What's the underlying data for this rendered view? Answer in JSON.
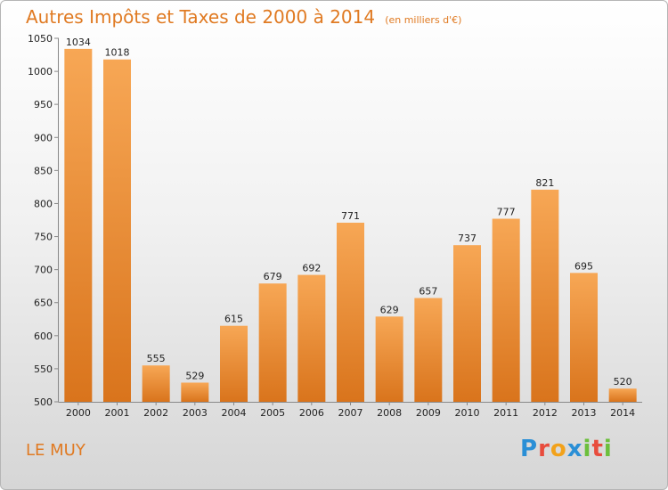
{
  "title": "Autres Impôts et Taxes de 2000 à 2014",
  "subtitle": "(en milliers d'€)",
  "location": "LE MUY",
  "brand": {
    "letters": [
      {
        "ch": "P",
        "color": "#2a8fd6"
      },
      {
        "ch": "r",
        "color": "#e84c3d"
      },
      {
        "ch": "o",
        "color": "#f2a21b"
      },
      {
        "ch": "x",
        "color": "#2a8fd6"
      },
      {
        "ch": "i",
        "color": "#6cbf3c"
      },
      {
        "ch": "t",
        "color": "#e84c3d"
      },
      {
        "ch": "i",
        "color": "#6cbf3c"
      }
    ]
  },
  "colors": {
    "accent": "#e07a22",
    "bar_top": "#f7a755",
    "bar_bottom": "#d9741c"
  },
  "chart_data": {
    "type": "bar",
    "title": "Autres Impôts et Taxes de 2000 à 2014",
    "subtitle": "(en milliers d'€)",
    "xlabel": "",
    "ylabel": "",
    "categories": [
      "2000",
      "2001",
      "2002",
      "2003",
      "2004",
      "2005",
      "2006",
      "2007",
      "2008",
      "2009",
      "2010",
      "2011",
      "2012",
      "2013",
      "2014"
    ],
    "values": [
      1034,
      1018,
      555,
      529,
      615,
      679,
      692,
      771,
      629,
      657,
      737,
      777,
      821,
      695,
      520
    ],
    "ylim": [
      500,
      1050
    ],
    "yticks": [
      500,
      550,
      600,
      650,
      700,
      750,
      800,
      850,
      900,
      950,
      1000,
      1050
    ],
    "grid": false,
    "legend": "none"
  }
}
